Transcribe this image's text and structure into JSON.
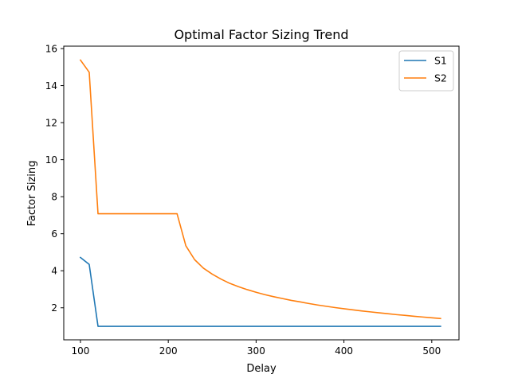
{
  "chart_data": {
    "type": "line",
    "title": "Optimal Factor Sizing Trend",
    "xlabel": "Delay",
    "ylabel": "Factor Sizing",
    "xlim": [
      81,
      531
    ],
    "ylim": [
      0.27,
      16.13
    ],
    "xticks": [
      100,
      200,
      300,
      400,
      500
    ],
    "yticks": [
      2,
      4,
      6,
      8,
      10,
      12,
      14,
      16
    ],
    "grid": false,
    "legend_position": "top-right",
    "x": [
      100,
      110,
      120,
      130,
      140,
      150,
      160,
      170,
      180,
      190,
      200,
      210,
      220,
      230,
      240,
      250,
      260,
      270,
      280,
      290,
      300,
      310,
      320,
      330,
      340,
      350,
      360,
      370,
      380,
      390,
      400,
      410,
      420,
      430,
      440,
      450,
      460,
      470,
      480,
      490,
      500,
      510
    ],
    "series": [
      {
        "name": "S1",
        "color": "#1f77b4",
        "values": [
          4.72,
          4.34,
          1.0,
          1.0,
          1.0,
          1.0,
          1.0,
          1.0,
          1.0,
          1.0,
          1.0,
          1.0,
          1.0,
          1.0,
          1.0,
          1.0,
          1.0,
          1.0,
          1.0,
          1.0,
          1.0,
          1.0,
          1.0,
          1.0,
          1.0,
          1.0,
          1.0,
          1.0,
          1.0,
          1.0,
          1.0,
          1.0,
          1.0,
          1.0,
          1.0,
          1.0,
          1.0,
          1.0,
          1.0,
          1.0,
          1.0,
          1.0
        ]
      },
      {
        "name": "S2",
        "color": "#ff7f0e",
        "values": [
          15.38,
          14.72,
          7.08,
          7.08,
          7.08,
          7.08,
          7.08,
          7.08,
          7.08,
          7.08,
          7.08,
          7.08,
          5.35,
          4.6,
          4.14,
          3.82,
          3.55,
          3.32,
          3.14,
          2.98,
          2.84,
          2.71,
          2.6,
          2.5,
          2.4,
          2.32,
          2.23,
          2.15,
          2.08,
          2.01,
          1.95,
          1.89,
          1.83,
          1.78,
          1.73,
          1.68,
          1.63,
          1.59,
          1.54,
          1.5,
          1.46,
          1.42
        ]
      }
    ]
  }
}
